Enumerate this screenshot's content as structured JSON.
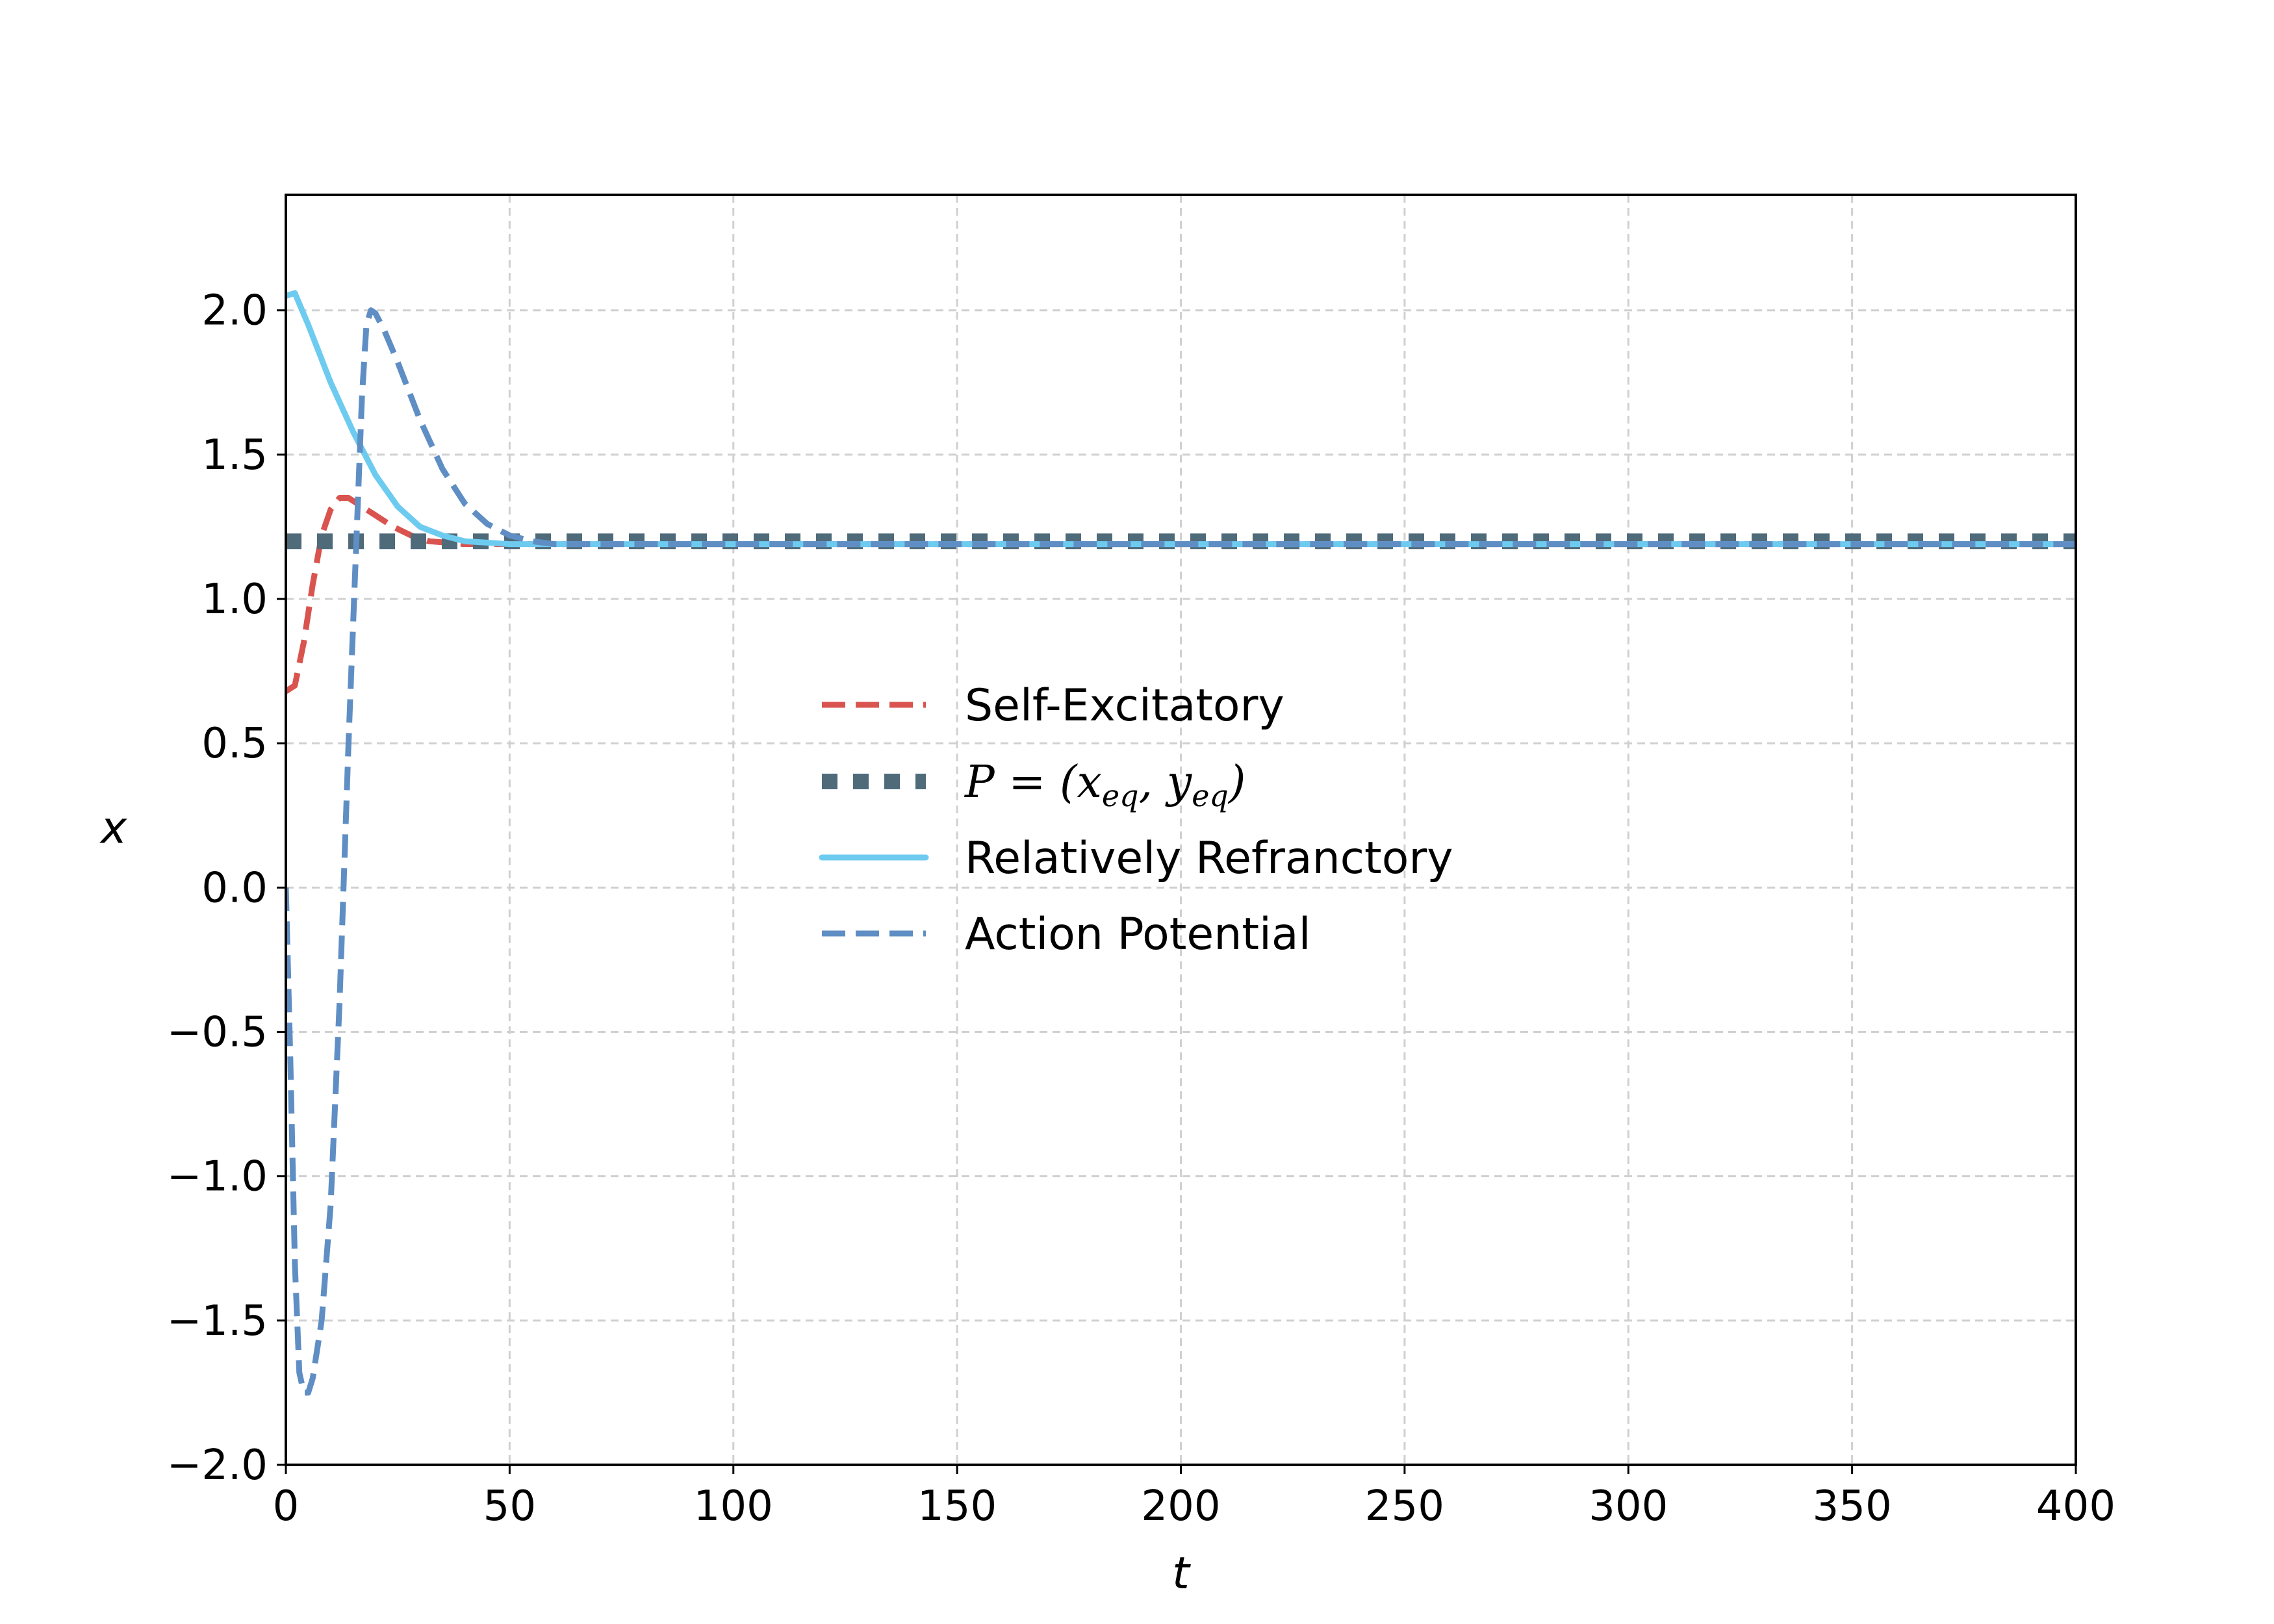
{
  "chart_data": {
    "type": "line",
    "title": "",
    "xlabel": "t",
    "ylabel": "x",
    "xlim": [
      0,
      400
    ],
    "ylim": [
      -2.0,
      2.4
    ],
    "xticks": [
      0,
      50,
      100,
      150,
      200,
      250,
      300,
      350,
      400
    ],
    "xtick_labels": [
      "0",
      "50",
      "100",
      "150",
      "200",
      "250",
      "300",
      "350",
      "400"
    ],
    "yticks": [
      -2.0,
      -1.5,
      -1.0,
      -0.5,
      0.0,
      0.5,
      1.0,
      1.5,
      2.0
    ],
    "ytick_labels": [
      "−2.0",
      "−1.5",
      "−1.0",
      "−0.5",
      "0.0",
      "0.5",
      "1.0",
      "1.5",
      "2.0"
    ],
    "grid": true,
    "legend_position": "center",
    "series": [
      {
        "name": "Self-Excitatory",
        "color": "#d9534f",
        "style": "dashed",
        "x": [
          0,
          2,
          4,
          6,
          8,
          10,
          12,
          14,
          16,
          18,
          20,
          24,
          28,
          32,
          36,
          40,
          50,
          60,
          80,
          100,
          150,
          200,
          250,
          300,
          350,
          400
        ],
        "y": [
          0.68,
          0.7,
          0.85,
          1.05,
          1.22,
          1.31,
          1.35,
          1.35,
          1.33,
          1.31,
          1.29,
          1.25,
          1.22,
          1.2,
          1.195,
          1.19,
          1.19,
          1.19,
          1.19,
          1.19,
          1.19,
          1.19,
          1.19,
          1.19,
          1.19,
          1.19
        ]
      },
      {
        "name": "P = (xeq, yeq)",
        "label_parts": {
          "prefix": "P = (",
          "x_var": "x",
          "x_sub": "eq",
          "sep": ", ",
          "y_var": "y",
          "y_sub": "eq",
          "suffix": ")"
        },
        "color": "#4f6b7a",
        "style": "dotted",
        "x": [
          0,
          400
        ],
        "y": [
          1.2,
          1.2
        ]
      },
      {
        "name": "Relatively Refranctory",
        "color": "#6ecbf0",
        "style": "solid",
        "x": [
          0,
          2,
          5,
          10,
          15,
          20,
          25,
          30,
          35,
          40,
          45,
          50,
          60,
          80,
          100,
          150,
          200,
          250,
          300,
          350,
          400
        ],
        "y": [
          2.05,
          2.06,
          1.95,
          1.75,
          1.58,
          1.43,
          1.32,
          1.25,
          1.22,
          1.2,
          1.195,
          1.19,
          1.19,
          1.19,
          1.19,
          1.19,
          1.19,
          1.19,
          1.19,
          1.19,
          1.19
        ]
      },
      {
        "name": "Action Potential",
        "color": "#5f8ec4",
        "style": "dashed",
        "x": [
          0,
          1,
          2,
          3,
          4,
          5,
          6,
          8,
          10,
          12,
          14,
          16,
          17,
          18,
          19,
          20,
          22,
          25,
          30,
          35,
          40,
          45,
          50,
          55,
          60,
          70,
          80,
          100,
          150,
          200,
          250,
          300,
          350,
          400
        ],
        "y": [
          0.0,
          -0.6,
          -1.3,
          -1.68,
          -1.75,
          -1.75,
          -1.7,
          -1.5,
          -1.1,
          -0.4,
          0.5,
          1.3,
          1.7,
          1.95,
          2.0,
          1.99,
          1.93,
          1.82,
          1.62,
          1.45,
          1.33,
          1.26,
          1.22,
          1.2,
          1.19,
          1.19,
          1.19,
          1.19,
          1.19,
          1.19,
          1.19,
          1.19,
          1.19,
          1.19
        ]
      }
    ]
  }
}
